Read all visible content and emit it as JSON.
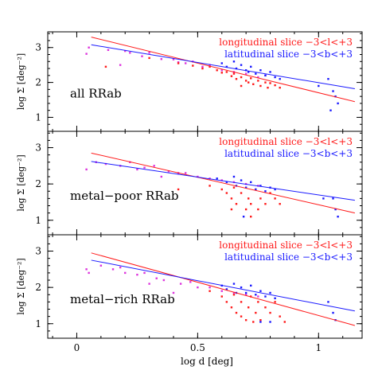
{
  "figure": {
    "x_axis_label": "log d [deg]",
    "y_axis_label": "log Σ [deg⁻²]"
  },
  "colors": {
    "longitudinal": "#ff1a1a",
    "latitudinal": "#1a1aff",
    "overlap": "#dd33dd",
    "axis": "#000000"
  },
  "chart_data": [
    {
      "type": "scatter",
      "panel_label": "all RRab",
      "xlim": [
        -0.12,
        1.18
      ],
      "ylim": [
        0.6,
        3.45
      ],
      "x_ticks": [
        0,
        0.5,
        1
      ],
      "y_ticks": [
        1,
        2,
        3
      ],
      "legend": [
        "longitudinal slice −3<l<+3",
        "latitudinal slice −3<b<+3"
      ],
      "legend_position": "top-right",
      "fits": [
        {
          "color": "longitudinal",
          "x": [
            0.06,
            1.15
          ],
          "y": [
            3.3,
            1.45
          ]
        },
        {
          "color": "latitudinal",
          "x": [
            0.06,
            1.15
          ],
          "y": [
            3.08,
            1.82
          ]
        }
      ],
      "overlap_points": [
        [
          0.04,
          2.82
        ],
        [
          0.05,
          3.0
        ],
        [
          0.13,
          2.93
        ],
        [
          0.18,
          2.5
        ],
        [
          0.2,
          2.9
        ],
        [
          0.22,
          2.85
        ],
        [
          0.27,
          2.75
        ],
        [
          0.3,
          2.85
        ],
        [
          0.35,
          2.67
        ],
        [
          0.4,
          2.66
        ],
        [
          0.42,
          2.58
        ],
        [
          0.45,
          2.55
        ],
        [
          0.48,
          2.6
        ],
        [
          0.52,
          2.45
        ],
        [
          0.55,
          2.5
        ],
        [
          0.6,
          2.35
        ],
        [
          0.65,
          2.3
        ],
        [
          0.7,
          2.25
        ],
        [
          0.75,
          2.15
        ],
        [
          0.78,
          2.2
        ]
      ],
      "series": [
        {
          "name": "longitudinal slice −3<l<+3",
          "color": "longitudinal",
          "points": [
            [
              0.12,
              2.45
            ],
            [
              0.3,
              2.7
            ],
            [
              0.42,
              2.55
            ],
            [
              0.48,
              2.48
            ],
            [
              0.52,
              2.4
            ],
            [
              0.55,
              2.45
            ],
            [
              0.58,
              2.35
            ],
            [
              0.6,
              2.28
            ],
            [
              0.62,
              2.3
            ],
            [
              0.64,
              2.18
            ],
            [
              0.65,
              2.25
            ],
            [
              0.66,
              2.1
            ],
            [
              0.68,
              2.15
            ],
            [
              0.7,
              2.05
            ],
            [
              0.71,
              2.0
            ],
            [
              0.72,
              2.12
            ],
            [
              0.73,
              1.95
            ],
            [
              0.75,
              2.05
            ],
            [
              0.76,
              1.9
            ],
            [
              0.78,
              2.0
            ],
            [
              0.79,
              1.85
            ],
            [
              0.8,
              1.98
            ],
            [
              0.82,
              1.92
            ],
            [
              0.84,
              1.85
            ],
            [
              0.68,
              1.9
            ]
          ]
        },
        {
          "name": "latitudinal slice −3<b<+3",
          "color": "latitudinal",
          "points": [
            [
              0.6,
              2.55
            ],
            [
              0.62,
              2.45
            ],
            [
              0.65,
              2.6
            ],
            [
              0.66,
              2.4
            ],
            [
              0.68,
              2.5
            ],
            [
              0.7,
              2.35
            ],
            [
              0.71,
              2.3
            ],
            [
              0.72,
              2.45
            ],
            [
              0.74,
              2.25
            ],
            [
              0.76,
              2.35
            ],
            [
              0.78,
              2.2
            ],
            [
              0.8,
              2.3
            ],
            [
              0.82,
              2.15
            ],
            [
              0.84,
              2.1
            ],
            [
              1.0,
              1.9
            ],
            [
              1.04,
              2.1
            ],
            [
              1.06,
              1.75
            ],
            [
              1.07,
              1.6
            ],
            [
              1.08,
              1.4
            ],
            [
              1.05,
              1.2
            ]
          ]
        }
      ]
    },
    {
      "type": "scatter",
      "panel_label": "metal−poor RRab",
      "xlim": [
        -0.12,
        1.18
      ],
      "ylim": [
        0.6,
        3.45
      ],
      "x_ticks": [
        0,
        0.5,
        1
      ],
      "y_ticks": [
        1,
        2,
        3
      ],
      "legend": [
        "longitudinal slice −3<l<+3",
        "latitudinal slice −3<b<+3"
      ],
      "legend_position": "top-right",
      "fits": [
        {
          "color": "longitudinal",
          "x": [
            0.06,
            1.15
          ],
          "y": [
            2.85,
            1.2
          ]
        },
        {
          "color": "latitudinal",
          "x": [
            0.06,
            1.15
          ],
          "y": [
            2.62,
            1.55
          ]
        }
      ],
      "overlap_points": [
        [
          0.04,
          2.4
        ],
        [
          0.08,
          2.6
        ],
        [
          0.12,
          2.55
        ],
        [
          0.18,
          2.5
        ],
        [
          0.22,
          2.6
        ],
        [
          0.25,
          2.4
        ],
        [
          0.28,
          2.45
        ],
        [
          0.32,
          2.5
        ],
        [
          0.35,
          2.2
        ],
        [
          0.38,
          2.35
        ],
        [
          0.42,
          2.3
        ],
        [
          0.45,
          2.3
        ],
        [
          0.5,
          2.2
        ],
        [
          0.55,
          2.15
        ],
        [
          0.6,
          2.1
        ],
        [
          0.65,
          2.05
        ],
        [
          0.7,
          2.0
        ],
        [
          0.75,
          1.95
        ]
      ],
      "series": [
        {
          "name": "longitudinal slice −3<l<+3",
          "color": "longitudinal",
          "points": [
            [
              0.42,
              1.85
            ],
            [
              0.55,
              1.95
            ],
            [
              0.6,
              1.85
            ],
            [
              0.62,
              1.75
            ],
            [
              0.64,
              1.6
            ],
            [
              0.65,
              1.9
            ],
            [
              0.66,
              1.45
            ],
            [
              0.68,
              1.75
            ],
            [
              0.7,
              1.3
            ],
            [
              0.71,
              1.6
            ],
            [
              0.72,
              1.45
            ],
            [
              0.74,
              1.85
            ],
            [
              0.75,
              1.3
            ],
            [
              0.76,
              1.6
            ],
            [
              0.78,
              1.45
            ],
            [
              0.8,
              1.75
            ],
            [
              0.82,
              1.6
            ],
            [
              0.84,
              1.45
            ],
            [
              0.64,
              1.3
            ],
            [
              0.72,
              1.1
            ]
          ]
        },
        {
          "name": "latitudinal slice −3<b<+3",
          "color": "latitudinal",
          "points": [
            [
              0.58,
              2.15
            ],
            [
              0.62,
              2.05
            ],
            [
              0.65,
              2.2
            ],
            [
              0.66,
              1.95
            ],
            [
              0.68,
              2.1
            ],
            [
              0.7,
              1.9
            ],
            [
              0.72,
              2.05
            ],
            [
              0.74,
              1.85
            ],
            [
              0.76,
              1.95
            ],
            [
              0.78,
              1.8
            ],
            [
              0.8,
              1.9
            ],
            [
              0.82,
              1.85
            ],
            [
              1.02,
              1.6
            ],
            [
              1.06,
              1.6
            ],
            [
              1.07,
              1.3
            ],
            [
              1.08,
              1.1
            ],
            [
              0.69,
              1.1
            ]
          ]
        }
      ]
    },
    {
      "type": "scatter",
      "panel_label": "metal−rich RRab",
      "xlim": [
        -0.12,
        1.18
      ],
      "ylim": [
        0.6,
        3.45
      ],
      "x_ticks": [
        0,
        0.5,
        1
      ],
      "y_ticks": [
        1,
        2,
        3
      ],
      "legend": [
        "longitudinal slice −3<l<+3",
        "latitudinal slice −3<b<+3"
      ],
      "legend_position": "top-right",
      "fits": [
        {
          "color": "longitudinal",
          "x": [
            0.06,
            1.15
          ],
          "y": [
            2.95,
            0.95
          ]
        },
        {
          "color": "latitudinal",
          "x": [
            0.06,
            1.15
          ],
          "y": [
            2.75,
            1.35
          ]
        }
      ],
      "overlap_points": [
        [
          0.04,
          2.5
        ],
        [
          0.05,
          2.4
        ],
        [
          0.1,
          2.6
        ],
        [
          0.15,
          2.5
        ],
        [
          0.18,
          2.55
        ],
        [
          0.2,
          2.4
        ],
        [
          0.25,
          2.35
        ],
        [
          0.28,
          2.4
        ],
        [
          0.3,
          2.1
        ],
        [
          0.33,
          2.25
        ],
        [
          0.36,
          2.2
        ],
        [
          0.4,
          1.85
        ],
        [
          0.43,
          2.1
        ],
        [
          0.47,
          2.15
        ],
        [
          0.5,
          2.0
        ],
        [
          0.55,
          2.0
        ],
        [
          0.6,
          1.9
        ],
        [
          0.65,
          1.85
        ],
        [
          0.7,
          1.8
        ],
        [
          0.75,
          1.75
        ]
      ],
      "series": [
        {
          "name": "longitudinal slice −3<l<+3",
          "color": "longitudinal",
          "points": [
            [
              0.55,
              1.9
            ],
            [
              0.6,
              1.75
            ],
            [
              0.62,
              1.6
            ],
            [
              0.64,
              1.45
            ],
            [
              0.65,
              1.8
            ],
            [
              0.66,
              1.3
            ],
            [
              0.68,
              1.6
            ],
            [
              0.7,
              1.1
            ],
            [
              0.71,
              1.45
            ],
            [
              0.72,
              1.75
            ],
            [
              0.74,
              1.3
            ],
            [
              0.75,
              1.6
            ],
            [
              0.76,
              1.1
            ],
            [
              0.78,
              1.45
            ],
            [
              0.8,
              1.3
            ],
            [
              0.82,
              1.6
            ],
            [
              0.84,
              1.2
            ],
            [
              0.86,
              1.05
            ],
            [
              0.68,
              1.2
            ],
            [
              0.73,
              1.05
            ]
          ]
        },
        {
          "name": "latitudinal slice −3<b<+3",
          "color": "latitudinal",
          "points": [
            [
              0.6,
              2.05
            ],
            [
              0.62,
              1.95
            ],
            [
              0.65,
              2.1
            ],
            [
              0.66,
              1.85
            ],
            [
              0.68,
              2.0
            ],
            [
              0.7,
              1.85
            ],
            [
              0.72,
              2.05
            ],
            [
              0.74,
              1.8
            ],
            [
              0.76,
              1.9
            ],
            [
              0.78,
              1.75
            ],
            [
              0.8,
              1.85
            ],
            [
              0.82,
              1.7
            ],
            [
              0.76,
              1.05
            ],
            [
              0.8,
              1.05
            ],
            [
              1.04,
              1.6
            ],
            [
              1.06,
              1.3
            ],
            [
              1.07,
              1.1
            ]
          ]
        }
      ]
    }
  ]
}
